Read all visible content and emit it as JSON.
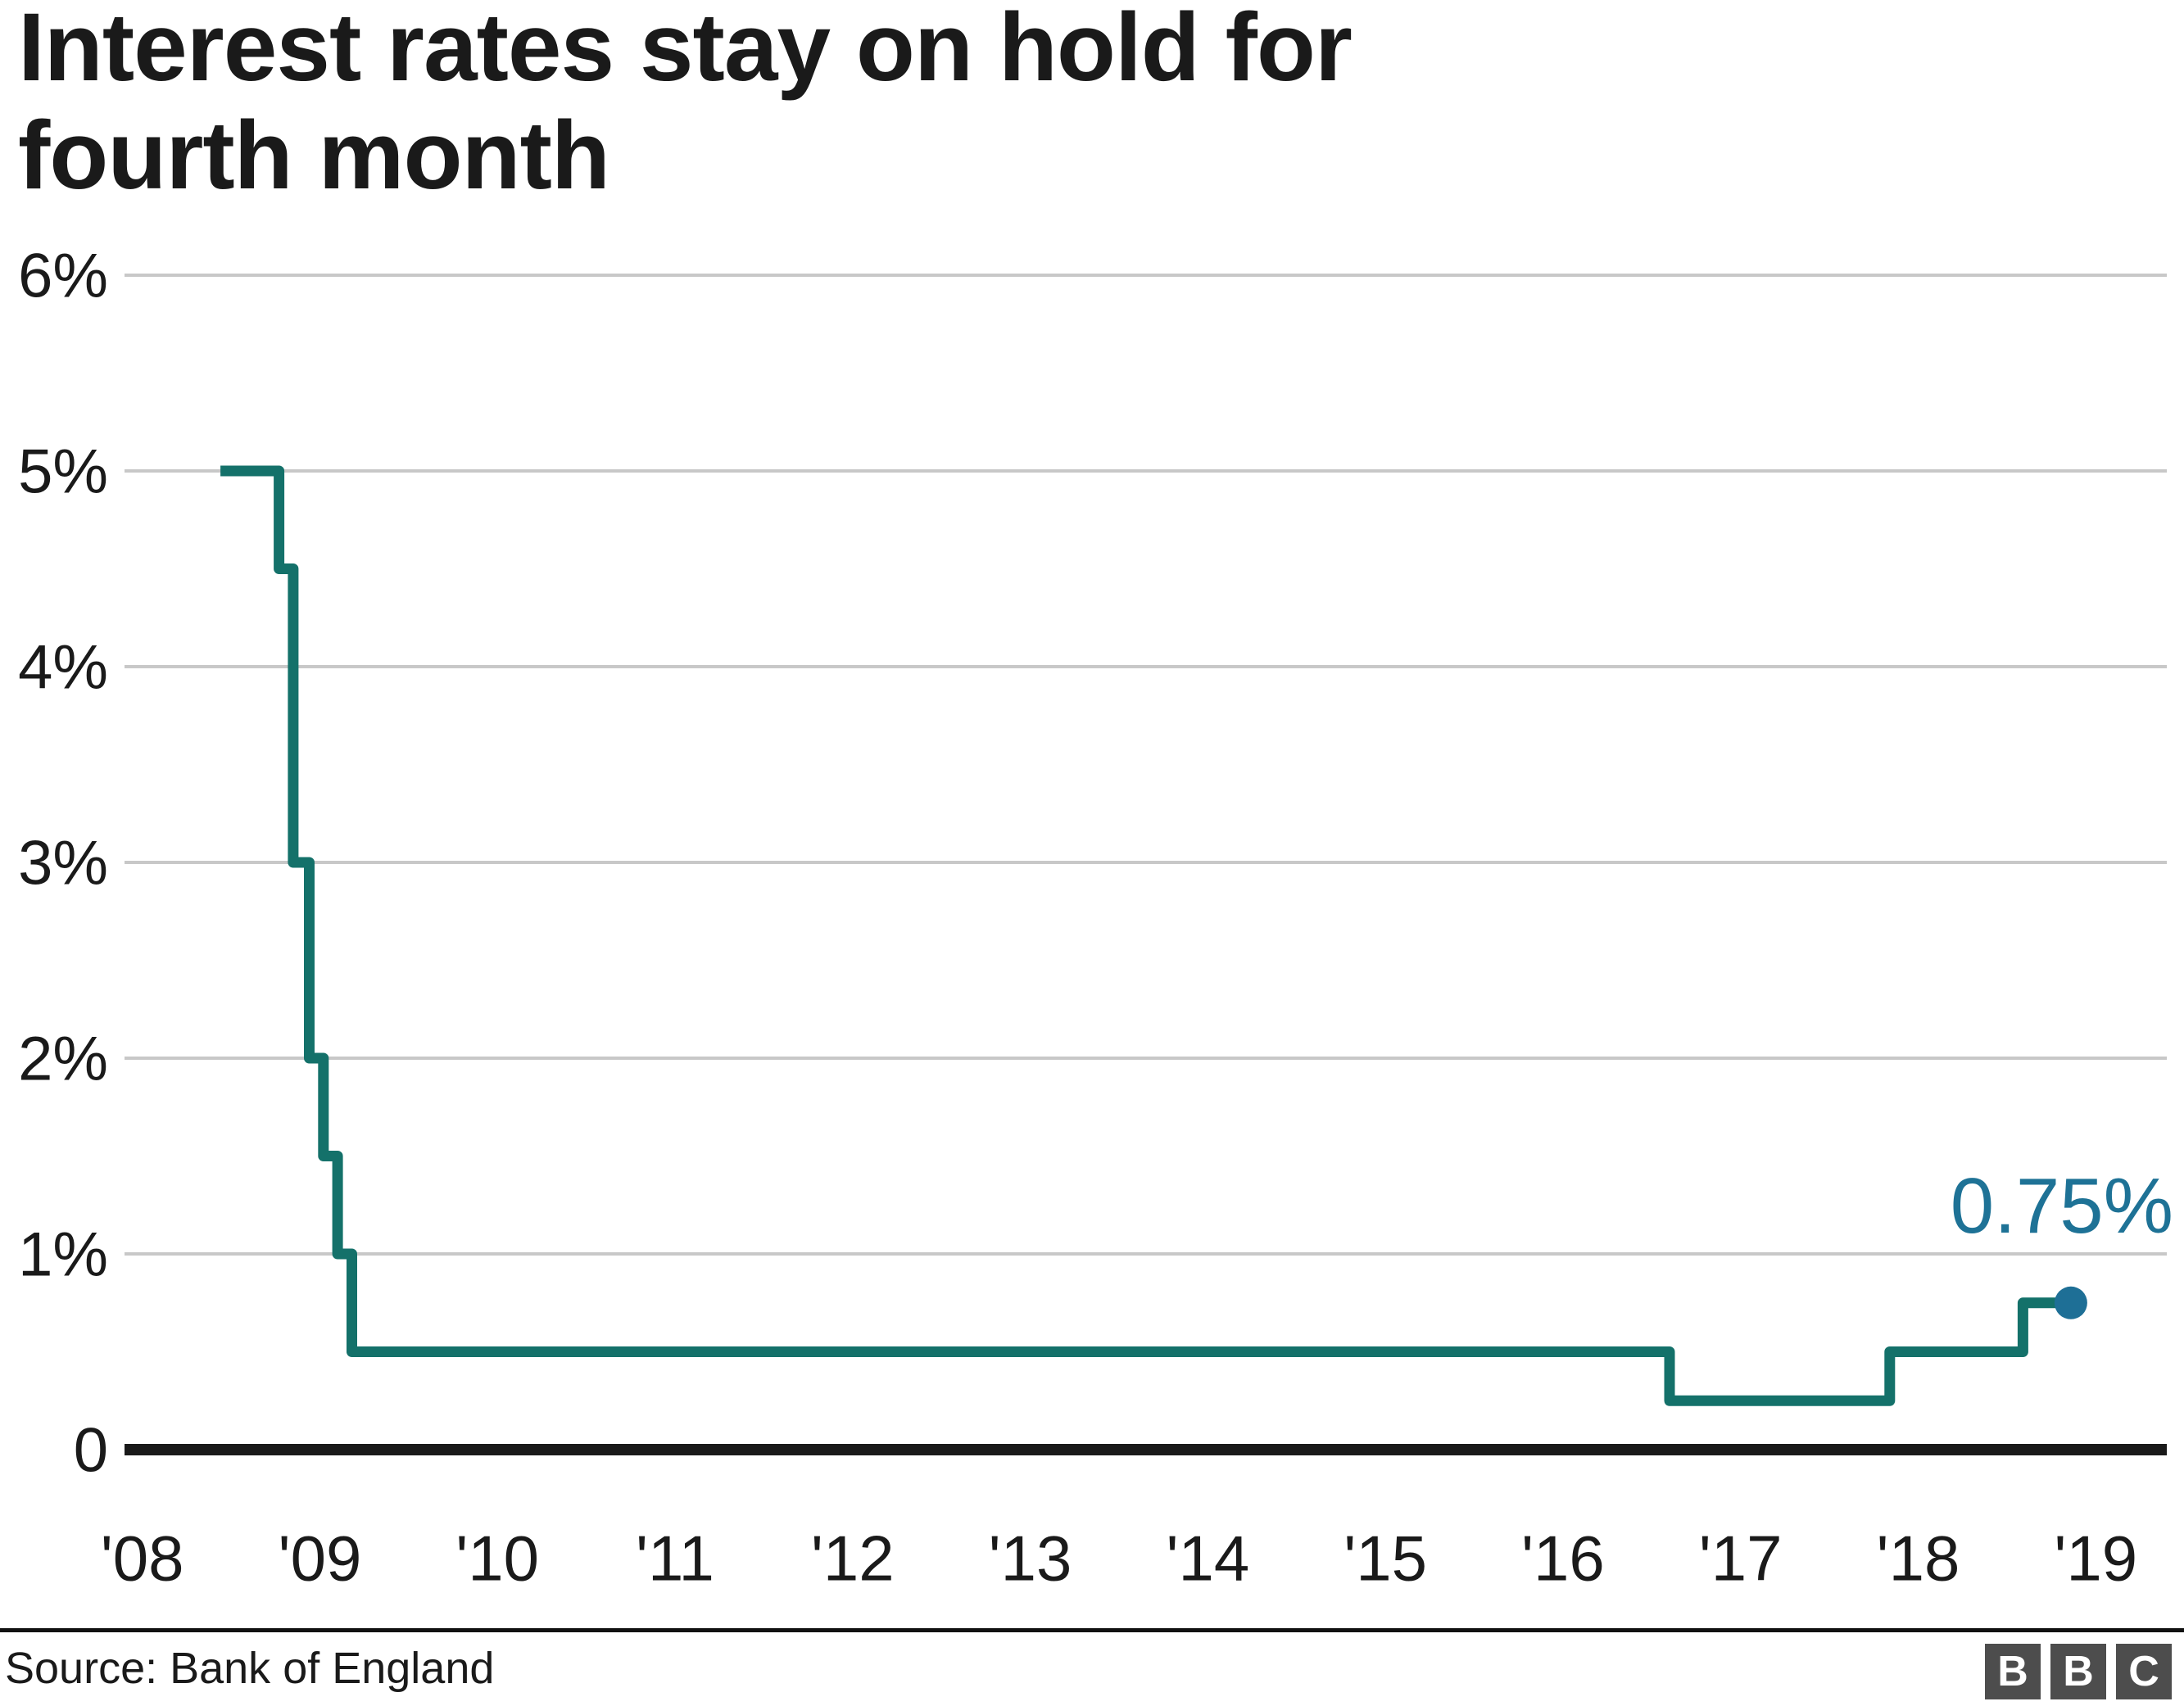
{
  "header": {
    "title_lines": [
      "Interest rates stay on hold for",
      "fourth month"
    ]
  },
  "footer": {
    "source": "Source: Bank of England",
    "logo_letters": [
      "B",
      "B",
      "C"
    ]
  },
  "colors": {
    "line": "#14716a",
    "endpoint": "#1e6f96",
    "annotation": "#1e7296",
    "gridline": "#c8c8c8",
    "axis": "#1a1a1a",
    "text": "#1a1a1a",
    "logo_bg": "#4d4d4d"
  },
  "chart_data": {
    "type": "line",
    "subtype": "step",
    "title": "Interest rates stay on hold for fourth month",
    "xlabel": "",
    "ylabel": "",
    "grid": true,
    "legend": false,
    "x_domain": [
      2007.9,
      2019.4
    ],
    "y_domain": [
      0,
      6
    ],
    "y_ticks": [
      {
        "value": 6,
        "label": "6%"
      },
      {
        "value": 5,
        "label": "5%"
      },
      {
        "value": 4,
        "label": "4%"
      },
      {
        "value": 3,
        "label": "3%"
      },
      {
        "value": 2,
        "label": "2%"
      },
      {
        "value": 1,
        "label": "1%"
      },
      {
        "value": 0,
        "label": "0"
      }
    ],
    "x_ticks": [
      {
        "value": 2008,
        "label": "'08"
      },
      {
        "value": 2009,
        "label": "'09"
      },
      {
        "value": 2010,
        "label": "'10"
      },
      {
        "value": 2011,
        "label": "'11"
      },
      {
        "value": 2012,
        "label": "'12"
      },
      {
        "value": 2013,
        "label": "'13"
      },
      {
        "value": 2014,
        "label": "'14"
      },
      {
        "value": 2015,
        "label": "'15"
      },
      {
        "value": 2016,
        "label": "'16"
      },
      {
        "value": 2017,
        "label": "'17"
      },
      {
        "value": 2018,
        "label": "'18"
      },
      {
        "value": 2019,
        "label": "'19"
      }
    ],
    "series": [
      {
        "unit": "percent",
        "step_changes": [
          {
            "x": 2008.44,
            "rate": 5.0
          },
          {
            "x": 2008.77,
            "rate": 4.5
          },
          {
            "x": 2008.85,
            "rate": 3.0
          },
          {
            "x": 2008.94,
            "rate": 2.0
          },
          {
            "x": 2009.02,
            "rate": 1.5
          },
          {
            "x": 2009.1,
            "rate": 1.0
          },
          {
            "x": 2009.18,
            "rate": 0.5
          },
          {
            "x": 2016.6,
            "rate": 0.25
          },
          {
            "x": 2017.84,
            "rate": 0.5
          },
          {
            "x": 2018.59,
            "rate": 0.75
          }
        ],
        "end_x": 2018.86,
        "end_value": 0.75
      }
    ],
    "annotation": {
      "text": "0.75%"
    }
  }
}
